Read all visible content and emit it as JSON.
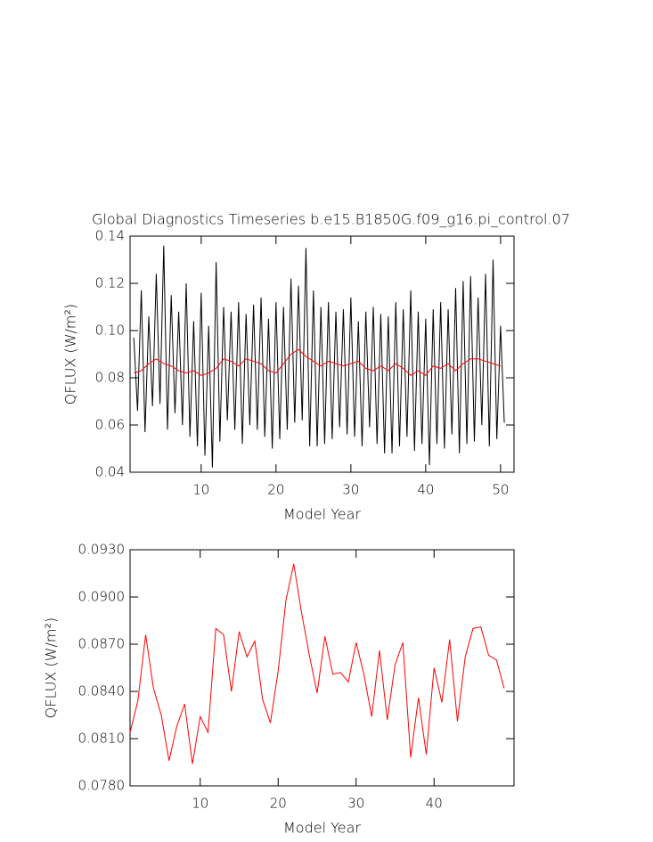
{
  "chart_data": [
    {
      "type": "line",
      "title": "Global Diagnostics Timeseries b.e15.B1850G.f09_g16.pi_control.07",
      "x_label": "Model Year",
      "y_label": "QFLUX (W/m²)",
      "xlim": [
        0.5,
        51.8
      ],
      "xticks": [
        10,
        20,
        30,
        40,
        50
      ],
      "ylim": [
        0.04,
        0.14
      ],
      "yticks": [
        0.04,
        0.06,
        0.08,
        {
          "value": 0.1,
          "label": "0.10"
        },
        0.12,
        0.14
      ],
      "series": [
        {
          "color": "#000000",
          "x": [
            1,
            1.5,
            2,
            2.5,
            3,
            3.5,
            4,
            4.5,
            5,
            5.5,
            6,
            6.5,
            7,
            7.5,
            8,
            8.5,
            9,
            9.5,
            10,
            10.5,
            11,
            11.5,
            12,
            12.5,
            13,
            13.5,
            14,
            14.5,
            15,
            15.5,
            16,
            16.5,
            17,
            17.5,
            18,
            18.5,
            19,
            19.5,
            20,
            20.5,
            21,
            21.5,
            22,
            22.5,
            23,
            23.5,
            24,
            24.5,
            25,
            25.5,
            26,
            26.5,
            27,
            27.5,
            28,
            28.5,
            29,
            29.5,
            30,
            30.5,
            31,
            31.5,
            32,
            32.5,
            33,
            33.5,
            34,
            34.5,
            35,
            35.5,
            36,
            36.5,
            37,
            37.5,
            38,
            38.5,
            39,
            39.5,
            40,
            40.5,
            41,
            41.5,
            42,
            42.5,
            43,
            43.5,
            44,
            44.5,
            45,
            45.5,
            46,
            46.5,
            47,
            47.5,
            48,
            48.5,
            49,
            49.5,
            50,
            50.5
          ],
          "values": [
            0.097,
            0.066,
            0.117,
            0.057,
            0.106,
            0.068,
            0.124,
            0.069,
            0.136,
            0.058,
            0.115,
            0.065,
            0.108,
            0.06,
            0.12,
            0.055,
            0.104,
            0.051,
            0.116,
            0.047,
            0.102,
            0.042,
            0.129,
            0.053,
            0.11,
            0.062,
            0.108,
            0.058,
            0.112,
            0.052,
            0.107,
            0.06,
            0.111,
            0.058,
            0.114,
            0.055,
            0.105,
            0.05,
            0.112,
            0.054,
            0.11,
            0.058,
            0.122,
            0.061,
            0.119,
            0.062,
            0.135,
            0.051,
            0.117,
            0.051,
            0.11,
            0.052,
            0.112,
            0.054,
            0.108,
            0.059,
            0.109,
            0.056,
            0.114,
            0.055,
            0.104,
            0.051,
            0.108,
            0.059,
            0.11,
            0.052,
            0.107,
            0.048,
            0.106,
            0.048,
            0.112,
            0.051,
            0.109,
            0.055,
            0.117,
            0.049,
            0.108,
            0.052,
            0.105,
            0.043,
            0.109,
            0.052,
            0.112,
            0.05,
            0.109,
            0.056,
            0.118,
            0.048,
            0.121,
            0.052,
            0.123,
            0.053,
            0.114,
            0.06,
            0.124,
            0.051,
            0.13,
            0.054,
            0.102,
            0.061
          ]
        },
        {
          "color": "#ff0000",
          "x": [
            1,
            2,
            3,
            4,
            5,
            6,
            7,
            8,
            9,
            10,
            11,
            12,
            13,
            14,
            15,
            16,
            17,
            18,
            19,
            20,
            21,
            22,
            23,
            24,
            25,
            26,
            27,
            28,
            29,
            30,
            31,
            32,
            33,
            34,
            35,
            36,
            37,
            38,
            39,
            40,
            41,
            42,
            43,
            44,
            45,
            46,
            47,
            48,
            49,
            50
          ],
          "values": [
            0.082,
            0.083,
            0.086,
            0.088,
            0.086,
            0.085,
            0.083,
            0.082,
            0.083,
            0.081,
            0.082,
            0.084,
            0.088,
            0.087,
            0.085,
            0.088,
            0.087,
            0.086,
            0.083,
            0.082,
            0.086,
            0.09,
            0.092,
            0.089,
            0.087,
            0.085,
            0.087,
            0.086,
            0.085,
            0.086,
            0.087,
            0.084,
            0.083,
            0.085,
            0.083,
            0.086,
            0.084,
            0.081,
            0.083,
            0.081,
            0.085,
            0.084,
            0.086,
            0.083,
            0.086,
            0.088,
            0.088,
            0.087,
            0.086,
            0.085
          ]
        }
      ]
    },
    {
      "type": "line",
      "x_label": "Model Year",
      "y_label": "QFLUX (W/m²)",
      "xlim": [
        1,
        50.26
      ],
      "xticks": [
        10,
        20,
        30,
        40
      ],
      "ylim": [
        0.078,
        0.093
      ],
      "yticks": [
        {
          "value": 0.078,
          "label": "0.0780"
        },
        {
          "value": 0.081,
          "label": "0.0810"
        },
        {
          "value": 0.084,
          "label": "0.0840"
        },
        {
          "value": 0.087,
          "label": "0.0870"
        },
        {
          "value": 0.09,
          "label": "0.0900"
        },
        {
          "value": 0.093,
          "label": "0.0930"
        }
      ],
      "x": [
        1,
        2,
        3,
        4,
        5,
        6,
        7,
        8,
        9,
        10,
        11,
        12,
        13,
        14,
        15,
        16,
        17,
        18,
        19,
        20,
        21,
        22,
        23,
        24,
        25,
        26,
        27,
        28,
        29,
        30,
        31,
        32,
        33,
        34,
        35,
        36,
        37,
        38,
        39,
        40,
        41,
        42,
        43,
        44,
        45,
        46,
        47,
        48,
        49
      ],
      "series": [
        {
          "color": "#ff0000",
          "values": [
            0.0814,
            0.0834,
            0.0876,
            0.0842,
            0.0825,
            0.0796,
            0.0818,
            0.0832,
            0.0794,
            0.0824,
            0.0814,
            0.088,
            0.0876,
            0.084,
            0.0878,
            0.0862,
            0.0872,
            0.0835,
            0.082,
            0.0853,
            0.0898,
            0.0921,
            0.089,
            0.0863,
            0.0839,
            0.0875,
            0.0851,
            0.0852,
            0.0846,
            0.0871,
            0.0851,
            0.0824,
            0.0866,
            0.0822,
            0.0857,
            0.0871,
            0.0798,
            0.0836,
            0.08,
            0.0855,
            0.0833,
            0.0873,
            0.0821,
            0.0862,
            0.088,
            0.0881,
            0.0863,
            0.086,
            0.0842
          ]
        }
      ]
    }
  ]
}
